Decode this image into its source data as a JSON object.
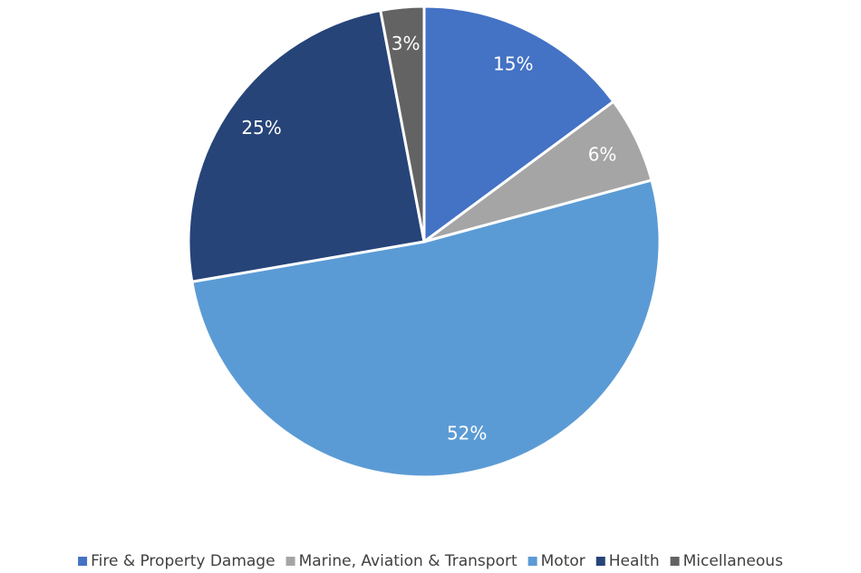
{
  "chart_data": {
    "type": "pie",
    "categories": [
      "Fire & Property Damage",
      "Marine, Aviation & Transport",
      "Motor",
      "Health",
      "Micellaneous"
    ],
    "values": [
      15,
      6,
      52,
      25,
      3
    ],
    "value_labels": [
      "15%",
      "6%",
      "52%",
      "25%",
      "3%"
    ],
    "colors": [
      "#4472c4",
      "#a5a5a5",
      "#5b9bd5",
      "#264478",
      "#636363"
    ],
    "legend": "bottom"
  }
}
